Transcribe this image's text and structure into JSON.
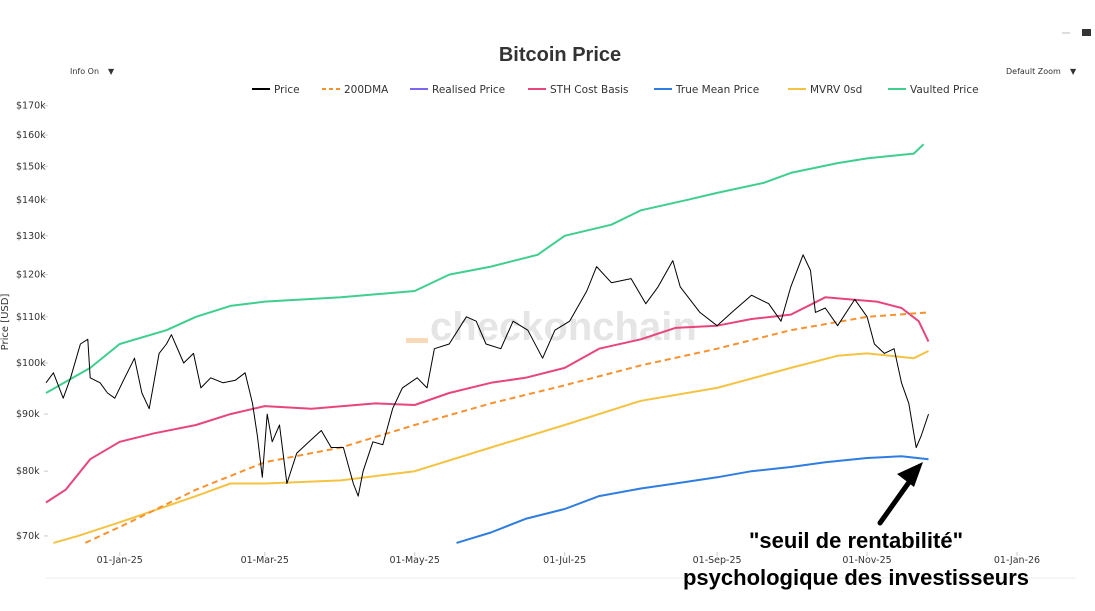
{
  "ui": {
    "info_toggle": "Info On",
    "zoom_select": "Default Zoom"
  },
  "watermark": "checkonchain",
  "annotation": {
    "line1": "\"seuil de rentabilité\"",
    "line2": "psychologique des investisseurs"
  },
  "chart_data": {
    "type": "line",
    "title": "Bitcoin Price",
    "ylabel": "Price [USD]",
    "y_scale": "log",
    "ylim": [
      68000,
      172000
    ],
    "xlim": [
      "2024-12-02",
      "2026-01-25"
    ],
    "grid": false,
    "legend_position": "top",
    "x_ticks": [
      {
        "date": "2025-01-01",
        "label": "01-Jan-25"
      },
      {
        "date": "2025-03-01",
        "label": "01-Mar-25"
      },
      {
        "date": "2025-05-01",
        "label": "01-May-25"
      },
      {
        "date": "2025-07-01",
        "label": "01-Jul-25"
      },
      {
        "date": "2025-09-01",
        "label": "01-Sep-25"
      },
      {
        "date": "2025-11-01",
        "label": "01-Nov-25"
      },
      {
        "date": "2026-01-01",
        "label": "01-Jan-26"
      }
    ],
    "y_ticks": [
      {
        "value": 70000,
        "label": "$70k"
      },
      {
        "value": 80000,
        "label": "$80k"
      },
      {
        "value": 90000,
        "label": "$90k"
      },
      {
        "value": 100000,
        "label": "$100k"
      },
      {
        "value": 110000,
        "label": "$110k"
      },
      {
        "value": 120000,
        "label": "$120k"
      },
      {
        "value": 130000,
        "label": "$130k"
      },
      {
        "value": 140000,
        "label": "$140k"
      },
      {
        "value": 150000,
        "label": "$150k"
      },
      {
        "value": 160000,
        "label": "$160k"
      },
      {
        "value": 170000,
        "label": "$170k"
      }
    ],
    "series": [
      {
        "name": "Price",
        "color": "#000000",
        "dash": "solid",
        "points": [
          [
            "2024-12-02",
            96000
          ],
          [
            "2024-12-05",
            98000
          ],
          [
            "2024-12-09",
            93000
          ],
          [
            "2024-12-12",
            97000
          ],
          [
            "2024-12-16",
            104000
          ],
          [
            "2024-12-19",
            105000
          ],
          [
            "2024-12-20",
            97000
          ],
          [
            "2024-12-24",
            96000
          ],
          [
            "2024-12-27",
            94000
          ],
          [
            "2024-12-30",
            93000
          ],
          [
            "2025-01-03",
            97000
          ],
          [
            "2025-01-07",
            101000
          ],
          [
            "2025-01-10",
            94000
          ],
          [
            "2025-01-13",
            91000
          ],
          [
            "2025-01-17",
            102000
          ],
          [
            "2025-01-20",
            104000
          ],
          [
            "2025-01-22",
            106000
          ],
          [
            "2025-01-27",
            100000
          ],
          [
            "2025-01-31",
            102000
          ],
          [
            "2025-02-03",
            95000
          ],
          [
            "2025-02-07",
            97000
          ],
          [
            "2025-02-12",
            96000
          ],
          [
            "2025-02-17",
            96500
          ],
          [
            "2025-02-21",
            98000
          ],
          [
            "2025-02-24",
            92000
          ],
          [
            "2025-02-26",
            86000
          ],
          [
            "2025-02-28",
            79000
          ],
          [
            "2025-03-02",
            90000
          ],
          [
            "2025-03-04",
            85000
          ],
          [
            "2025-03-07",
            88000
          ],
          [
            "2025-03-10",
            78000
          ],
          [
            "2025-03-14",
            83000
          ],
          [
            "2025-03-19",
            85000
          ],
          [
            "2025-03-24",
            87000
          ],
          [
            "2025-03-28",
            84000
          ],
          [
            "2025-04-02",
            84000
          ],
          [
            "2025-04-06",
            78000
          ],
          [
            "2025-04-08",
            76000
          ],
          [
            "2025-04-10",
            80000
          ],
          [
            "2025-04-14",
            85000
          ],
          [
            "2025-04-18",
            84500
          ],
          [
            "2025-04-22",
            91000
          ],
          [
            "2025-04-26",
            95000
          ],
          [
            "2025-05-02",
            97000
          ],
          [
            "2025-05-06",
            95000
          ],
          [
            "2025-05-09",
            103000
          ],
          [
            "2025-05-15",
            104000
          ],
          [
            "2025-05-22",
            110000
          ],
          [
            "2025-05-26",
            109000
          ],
          [
            "2025-05-30",
            104000
          ],
          [
            "2025-06-05",
            103000
          ],
          [
            "2025-06-10",
            109000
          ],
          [
            "2025-06-16",
            107000
          ],
          [
            "2025-06-22",
            101000
          ],
          [
            "2025-06-27",
            107000
          ],
          [
            "2025-07-03",
            109000
          ],
          [
            "2025-07-10",
            116000
          ],
          [
            "2025-07-14",
            122000
          ],
          [
            "2025-07-20",
            118000
          ],
          [
            "2025-07-28",
            119000
          ],
          [
            "2025-08-03",
            113000
          ],
          [
            "2025-08-08",
            117000
          ],
          [
            "2025-08-14",
            123500
          ],
          [
            "2025-08-17",
            117000
          ],
          [
            "2025-08-25",
            111000
          ],
          [
            "2025-09-01",
            108000
          ],
          [
            "2025-09-07",
            111000
          ],
          [
            "2025-09-15",
            115000
          ],
          [
            "2025-09-22",
            113000
          ],
          [
            "2025-09-27",
            109000
          ],
          [
            "2025-10-01",
            117000
          ],
          [
            "2025-10-06",
            125000
          ],
          [
            "2025-10-09",
            121000
          ],
          [
            "2025-10-11",
            111000
          ],
          [
            "2025-10-15",
            112000
          ],
          [
            "2025-10-20",
            108000
          ],
          [
            "2025-10-27",
            114000
          ],
          [
            "2025-11-01",
            110000
          ],
          [
            "2025-11-04",
            104000
          ],
          [
            "2025-11-08",
            102000
          ],
          [
            "2025-11-12",
            103000
          ],
          [
            "2025-11-15",
            96000
          ],
          [
            "2025-11-18",
            92000
          ],
          [
            "2025-11-21",
            84000
          ],
          [
            "2025-11-23",
            86000
          ],
          [
            "2025-11-26",
            90000
          ]
        ]
      },
      {
        "name": "200DMA",
        "color": "#f7922f",
        "dash": "dashed",
        "points": [
          [
            "2024-12-18",
            69000
          ],
          [
            "2025-01-05",
            72000
          ],
          [
            "2025-02-01",
            77000
          ],
          [
            "2025-03-01",
            81500
          ],
          [
            "2025-04-01",
            84000
          ],
          [
            "2025-05-01",
            88000
          ],
          [
            "2025-06-01",
            92000
          ],
          [
            "2025-07-01",
            95500
          ],
          [
            "2025-08-01",
            99500
          ],
          [
            "2025-09-01",
            103000
          ],
          [
            "2025-10-01",
            107000
          ],
          [
            "2025-11-01",
            110000
          ],
          [
            "2025-11-26",
            111000
          ]
        ]
      },
      {
        "name": "Realised Price",
        "color": "#7b68ee",
        "dash": "solid",
        "points": []
      },
      {
        "name": "STH Cost Basis",
        "color": "#e8457a",
        "dash": "solid",
        "points": [
          [
            "2024-12-02",
            75000
          ],
          [
            "2024-12-10",
            77000
          ],
          [
            "2024-12-20",
            82000
          ],
          [
            "2025-01-01",
            85000
          ],
          [
            "2025-01-15",
            86500
          ],
          [
            "2025-02-01",
            88000
          ],
          [
            "2025-02-15",
            90000
          ],
          [
            "2025-03-01",
            91500
          ],
          [
            "2025-03-20",
            91000
          ],
          [
            "2025-04-15",
            92000
          ],
          [
            "2025-05-01",
            91700
          ],
          [
            "2025-05-15",
            94000
          ],
          [
            "2025-06-01",
            96000
          ],
          [
            "2025-06-15",
            97000
          ],
          [
            "2025-07-01",
            99000
          ],
          [
            "2025-07-15",
            103000
          ],
          [
            "2025-08-01",
            105000
          ],
          [
            "2025-08-15",
            107500
          ],
          [
            "2025-09-01",
            108000
          ],
          [
            "2025-09-15",
            109500
          ],
          [
            "2025-10-01",
            110500
          ],
          [
            "2025-10-15",
            114500
          ],
          [
            "2025-10-25",
            114000
          ],
          [
            "2025-11-05",
            113500
          ],
          [
            "2025-11-15",
            112000
          ],
          [
            "2025-11-22",
            109000
          ],
          [
            "2025-11-26",
            104500
          ]
        ]
      },
      {
        "name": "True Mean Price",
        "color": "#2f7de1",
        "dash": "solid",
        "points": [
          [
            "2025-05-18",
            69000
          ],
          [
            "2025-06-01",
            70500
          ],
          [
            "2025-06-15",
            72500
          ],
          [
            "2025-07-01",
            74000
          ],
          [
            "2025-07-15",
            76000
          ],
          [
            "2025-08-01",
            77200
          ],
          [
            "2025-08-15",
            78000
          ],
          [
            "2025-09-01",
            79000
          ],
          [
            "2025-09-15",
            80000
          ],
          [
            "2025-10-01",
            80700
          ],
          [
            "2025-10-15",
            81500
          ],
          [
            "2025-11-01",
            82200
          ],
          [
            "2025-11-15",
            82500
          ],
          [
            "2025-11-26",
            82000
          ]
        ]
      },
      {
        "name": "MVRV 0sd",
        "color": "#f5c342",
        "dash": "solid",
        "points": [
          [
            "2024-12-05",
            69000
          ],
          [
            "2024-12-15",
            70000
          ],
          [
            "2025-01-01",
            72000
          ],
          [
            "2025-02-01",
            76000
          ],
          [
            "2025-02-15",
            78000
          ],
          [
            "2025-03-01",
            78000
          ],
          [
            "2025-04-01",
            78500
          ],
          [
            "2025-05-01",
            80000
          ],
          [
            "2025-06-01",
            84000
          ],
          [
            "2025-07-01",
            88000
          ],
          [
            "2025-08-01",
            92500
          ],
          [
            "2025-09-01",
            95000
          ],
          [
            "2025-10-01",
            99000
          ],
          [
            "2025-10-20",
            101500
          ],
          [
            "2025-11-01",
            102000
          ],
          [
            "2025-11-20",
            101000
          ],
          [
            "2025-11-26",
            102500
          ]
        ]
      },
      {
        "name": "Vaulted Price",
        "color": "#3ecf8e",
        "dash": "solid",
        "points": [
          [
            "2024-12-02",
            94000
          ],
          [
            "2024-12-20",
            99000
          ],
          [
            "2025-01-01",
            104000
          ],
          [
            "2025-01-20",
            107000
          ],
          [
            "2025-02-01",
            110000
          ],
          [
            "2025-02-15",
            112500
          ],
          [
            "2025-03-01",
            113500
          ],
          [
            "2025-04-01",
            114500
          ],
          [
            "2025-05-01",
            116000
          ],
          [
            "2025-05-15",
            120000
          ],
          [
            "2025-06-01",
            122000
          ],
          [
            "2025-06-20",
            125000
          ],
          [
            "2025-07-01",
            130000
          ],
          [
            "2025-07-20",
            133000
          ],
          [
            "2025-08-01",
            137000
          ],
          [
            "2025-08-20",
            140000
          ],
          [
            "2025-09-01",
            142000
          ],
          [
            "2025-09-20",
            145000
          ],
          [
            "2025-10-01",
            148000
          ],
          [
            "2025-10-20",
            151000
          ],
          [
            "2025-11-01",
            152500
          ],
          [
            "2025-11-20",
            154000
          ],
          [
            "2025-11-24",
            157000
          ]
        ]
      }
    ]
  }
}
